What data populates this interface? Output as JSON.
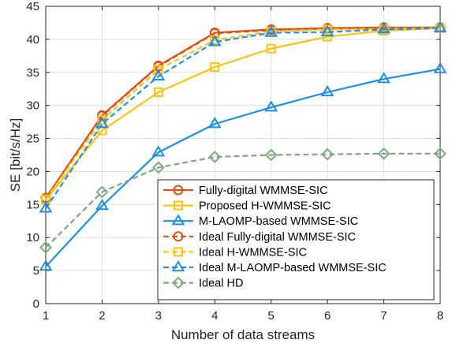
{
  "chart_data": {
    "type": "line",
    "xlabel": "Number of data streams",
    "ylabel": "SE [bit/s/Hz]",
    "xlim": [
      1,
      8
    ],
    "ylim": [
      0,
      45
    ],
    "xticks": [
      1,
      2,
      3,
      4,
      5,
      6,
      7,
      8
    ],
    "yticks": [
      0,
      5,
      10,
      15,
      20,
      25,
      30,
      35,
      40,
      45
    ],
    "grid": true,
    "legend_position": "bottom-right",
    "x": [
      1,
      2,
      3,
      4,
      5,
      6,
      7,
      8
    ],
    "series": [
      {
        "name": "Fully-digital WMMSE-SIC",
        "values": [
          16.0,
          28.5,
          36.0,
          41.0,
          41.5,
          41.7,
          41.8,
          41.8
        ],
        "color": "#D95319",
        "line": "solid",
        "marker": "circle"
      },
      {
        "name": "Proposed H-WMMSE-SIC",
        "values": [
          15.7,
          26.2,
          32.0,
          35.8,
          38.6,
          40.4,
          41.3,
          41.7
        ],
        "color": "#FFC20E",
        "line": "solid",
        "marker": "square"
      },
      {
        "name": "M-LAOMP-based WMMSE-SIC",
        "values": [
          5.6,
          14.8,
          22.9,
          27.2,
          29.7,
          32.0,
          34.0,
          35.5
        ],
        "color": "#1F8FE0",
        "line": "solid",
        "marker": "triangle"
      },
      {
        "name": "Ideal Fully-digital WMMSE-SIC",
        "values": [
          16.0,
          28.4,
          35.9,
          40.9,
          41.4,
          41.6,
          41.7,
          41.8
        ],
        "color": "#D95319",
        "line": "dashed",
        "marker": "circle"
      },
      {
        "name": "Ideal H-WMMSE-SIC",
        "values": [
          15.8,
          27.8,
          35.4,
          39.9,
          41.2,
          41.5,
          41.6,
          41.7
        ],
        "color": "#FFC20E",
        "line": "dashed",
        "marker": "square"
      },
      {
        "name": "Ideal M-LAOMP-based WMMSE-SIC",
        "values": [
          14.4,
          27.2,
          34.4,
          39.6,
          41.0,
          41.1,
          41.5,
          41.7
        ],
        "color": "#1F8FE0",
        "line": "dashed",
        "marker": "triangle"
      },
      {
        "name": "Ideal HD",
        "values": [
          8.5,
          16.9,
          20.6,
          22.2,
          22.5,
          22.6,
          22.7,
          22.7
        ],
        "color": "#7EA882",
        "line": "dashed",
        "marker": "diamond"
      }
    ]
  }
}
